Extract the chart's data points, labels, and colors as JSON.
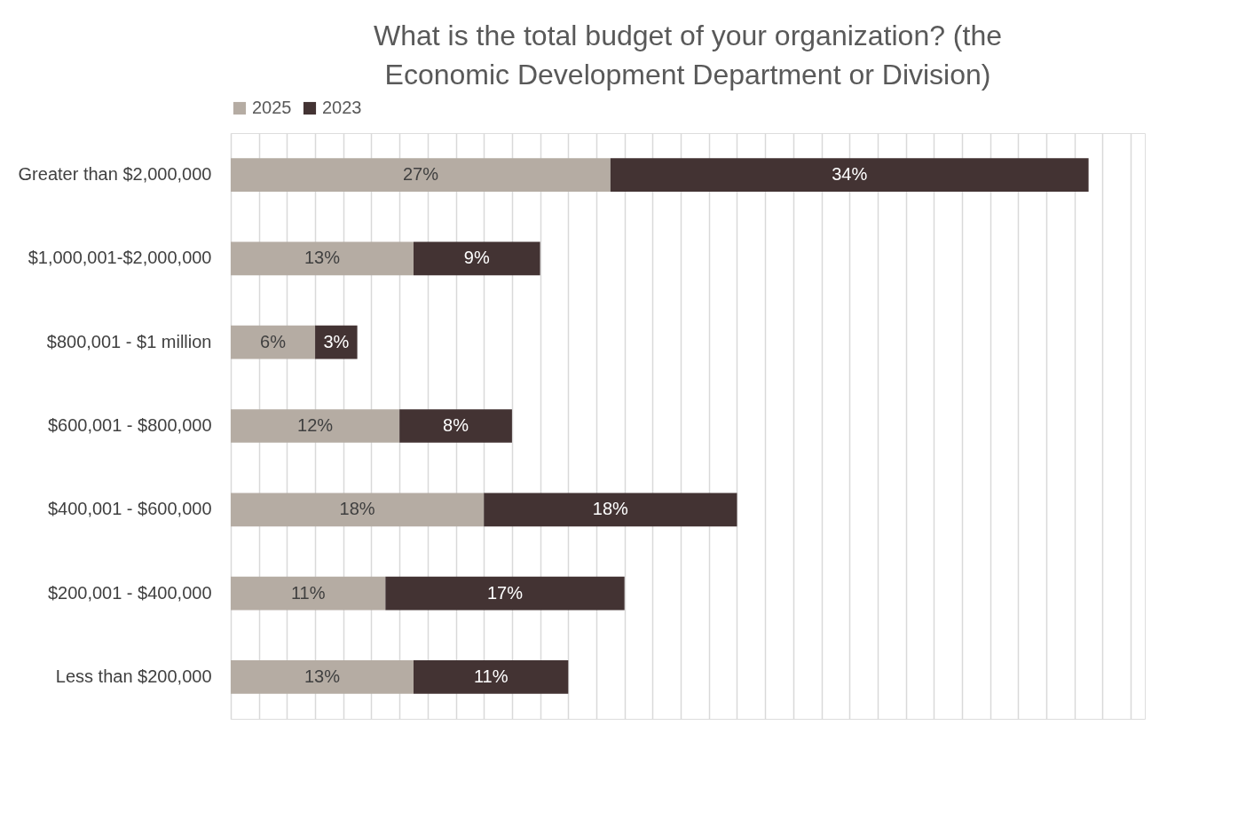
{
  "chart_data": {
    "type": "bar",
    "orientation": "horizontal",
    "stacked": true,
    "title": "What is the total budget of your organization? (the Economic Development Department or Division)",
    "categories": [
      "Greater than $2,000,000",
      "$1,000,001-$2,000,000",
      "$800,001 - $1 million",
      "$600,001 - $800,000",
      "$400,001 - $600,000",
      "$200,001 - $400,000",
      "Less than $200,000"
    ],
    "series": [
      {
        "name": "2025",
        "color": "#b5aca3",
        "values": [
          27,
          13,
          6,
          12,
          18,
          11,
          13
        ],
        "value_labels": [
          "27%",
          "13%",
          "6%",
          "12%",
          "18%",
          "11%",
          "13%"
        ]
      },
      {
        "name": "2023",
        "color": "#433333",
        "values": [
          34,
          9,
          3,
          8,
          18,
          17,
          11
        ],
        "value_labels": [
          "34%",
          "9%",
          "3%",
          "8%",
          "18%",
          "17%",
          "11%"
        ]
      }
    ],
    "tick_labels": "y",
    "grid": "x",
    "legend": "top"
  }
}
